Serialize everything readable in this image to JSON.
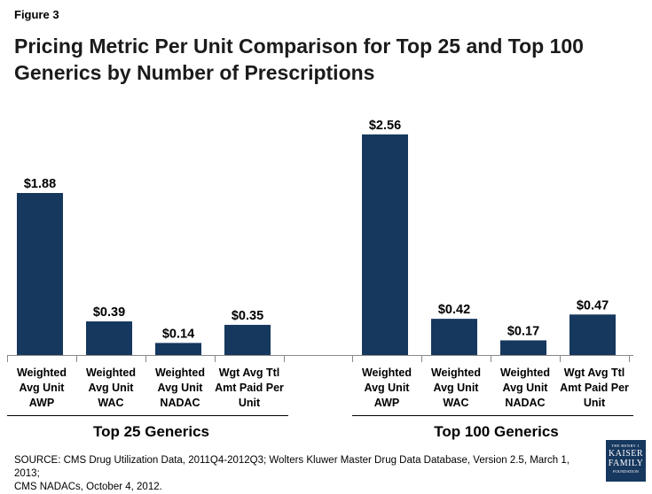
{
  "figure_label": "Figure 3",
  "source": {
    "line1": "SOURCE: CMS Drug Utilization Data, 2011Q4-2012Q3; Wolters Kluwer Master Drug Data Database, Version 2.5, March 1, 2013;",
    "line2": "CMS NADACs, October 4, 2012."
  },
  "logo": {
    "line1": "THE HENRY J.",
    "line2a": "KAISER",
    "line2b": "FAMILY",
    "line3": "FOUNDATION"
  },
  "colors": {
    "bar": "#16375e"
  },
  "chart_data": {
    "type": "bar",
    "title": "Pricing Metric Per Unit Comparison for Top 25 and Top 100 Generics by Number of Prescriptions",
    "ylim": [
      0,
      2.8
    ],
    "grid": false,
    "groups": [
      {
        "name": "Top 25 Generics",
        "bars": [
          {
            "category": [
              "Weighted",
              "Avg Unit",
              "AWP"
            ],
            "value": 1.88,
            "label": "$1.88"
          },
          {
            "category": [
              "Weighted",
              "Avg Unit",
              "WAC"
            ],
            "value": 0.39,
            "label": "$0.39"
          },
          {
            "category": [
              "Weighted",
              "Avg Unit",
              "NADAC"
            ],
            "value": 0.14,
            "label": "$0.14"
          },
          {
            "category": [
              "Wgt Avg Ttl",
              "Amt Paid Per",
              "Unit"
            ],
            "value": 0.35,
            "label": "$0.35"
          }
        ]
      },
      {
        "name": "Top 100 Generics",
        "bars": [
          {
            "category": [
              "Weighted",
              "Avg Unit",
              "AWP"
            ],
            "value": 2.56,
            "label": "$2.56"
          },
          {
            "category": [
              "Weighted",
              "Avg Unit",
              "WAC"
            ],
            "value": 0.42,
            "label": "$0.42"
          },
          {
            "category": [
              "Weighted",
              "Avg Unit",
              "NADAC"
            ],
            "value": 0.17,
            "label": "$0.17"
          },
          {
            "category": [
              "Wgt Avg Ttl",
              "Amt Paid Per",
              "Unit"
            ],
            "value": 0.47,
            "label": "$0.47"
          }
        ]
      }
    ]
  }
}
